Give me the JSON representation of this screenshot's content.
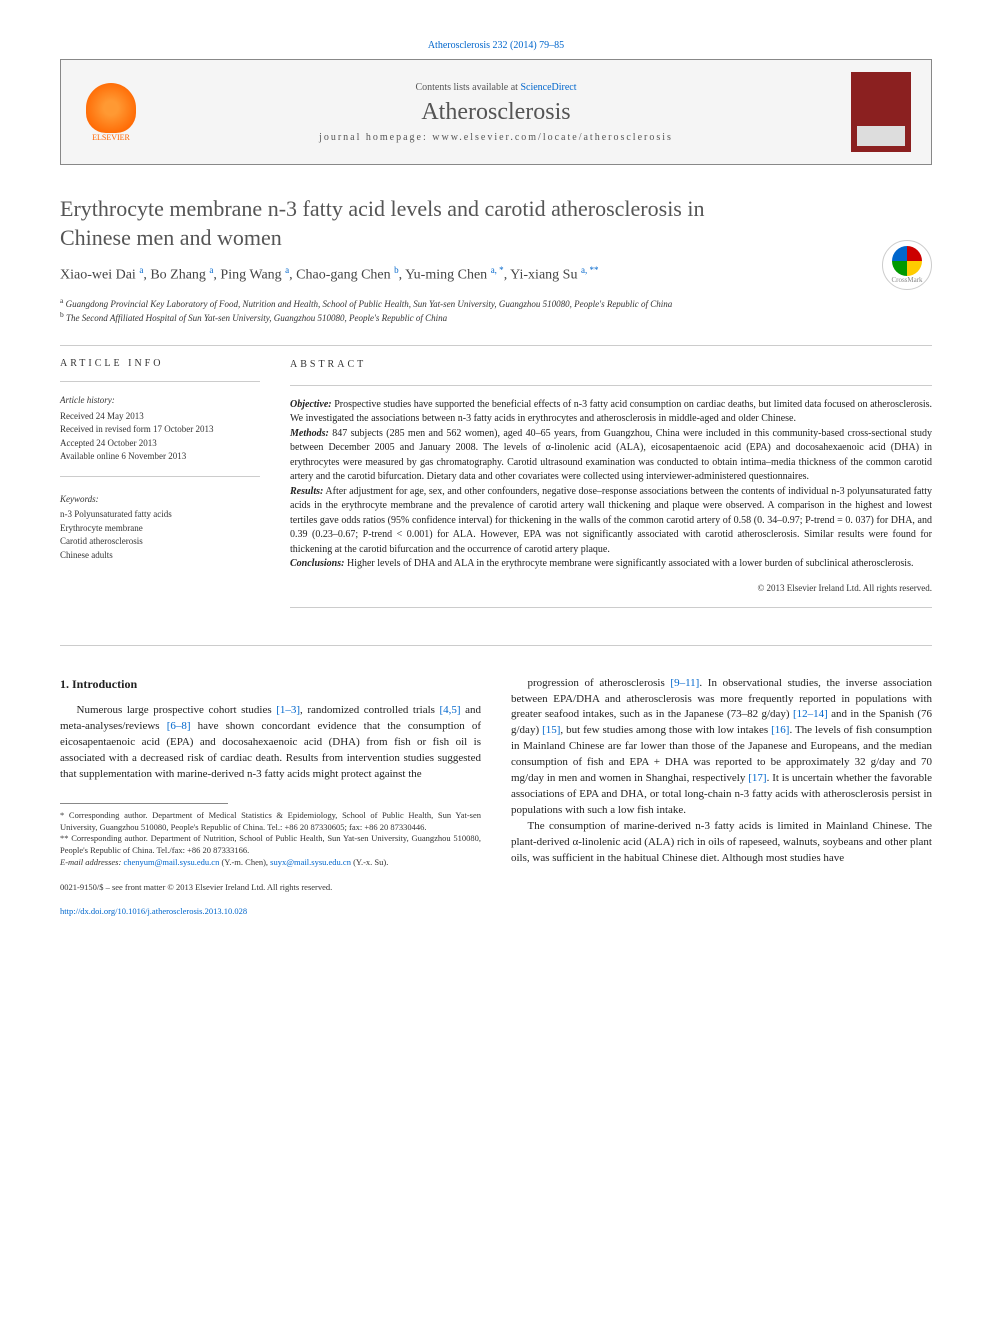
{
  "citation": "Atherosclerosis 232 (2014) 79–85",
  "header": {
    "contents_prefix": "Contents lists available at ",
    "contents_link": "ScienceDirect",
    "journal_name": "Atherosclerosis",
    "homepage_prefix": "journal homepage: ",
    "homepage_url": "www.elsevier.com/locate/atherosclerosis",
    "publisher_name": "ELSEVIER"
  },
  "crossmark_label": "CrossMark",
  "title": "Erythrocyte membrane n-3 fatty acid levels and carotid atherosclerosis in Chinese men and women",
  "authors_html": "Xiao-wei Dai <sup>a</sup>, Bo Zhang <sup>a</sup>, Ping Wang <sup>a</sup>, Chao-gang Chen <sup>b</sup>, Yu-ming Chen <sup>a, *</sup>, Yi-xiang Su <sup>a, **</sup>",
  "affiliations": {
    "a": "Guangdong Provincial Key Laboratory of Food, Nutrition and Health, School of Public Health, Sun Yat-sen University, Guangzhou 510080, People's Republic of China",
    "b": "The Second Affiliated Hospital of Sun Yat-sen University, Guangzhou 510080, People's Republic of China"
  },
  "article_info_header": "ARTICLE INFO",
  "abstract_header": "ABSTRACT",
  "history": {
    "label": "Article history:",
    "received": "Received 24 May 2013",
    "revised": "Received in revised form 17 October 2013",
    "accepted": "Accepted 24 October 2013",
    "online": "Available online 6 November 2013"
  },
  "keywords": {
    "label": "Keywords:",
    "items": [
      "n-3 Polyunsaturated fatty acids",
      "Erythrocyte membrane",
      "Carotid atherosclerosis",
      "Chinese adults"
    ]
  },
  "abstract": {
    "objective_label": "Objective:",
    "objective": "Prospective studies have supported the beneficial effects of n-3 fatty acid consumption on cardiac deaths, but limited data focused on atherosclerosis. We investigated the associations between n-3 fatty acids in erythrocytes and atherosclerosis in middle-aged and older Chinese.",
    "methods_label": "Methods:",
    "methods": "847 subjects (285 men and 562 women), aged 40–65 years, from Guangzhou, China were included in this community-based cross-sectional study between December 2005 and January 2008. The levels of α-linolenic acid (ALA), eicosapentaenoic acid (EPA) and docosahexaenoic acid (DHA) in erythrocytes were measured by gas chromatography. Carotid ultrasound examination was conducted to obtain intima–media thickness of the common carotid artery and the carotid bifurcation. Dietary data and other covariates were collected using interviewer-administered questionnaires.",
    "results_label": "Results:",
    "results": "After adjustment for age, sex, and other confounders, negative dose–response associations between the contents of individual n-3 polyunsaturated fatty acids in the erythrocyte membrane and the prevalence of carotid artery wall thickening and plaque were observed. A comparison in the highest and lowest tertiles gave odds ratios (95% confidence interval) for thickening in the walls of the common carotid artery of 0.58 (0. 34–0.97; P-trend = 0. 037) for DHA, and 0.39 (0.23–0.67; P-trend < 0.001) for ALA. However, EPA was not significantly associated with carotid atherosclerosis. Similar results were found for thickening at the carotid bifurcation and the occurrence of carotid artery plaque.",
    "conclusions_label": "Conclusions:",
    "conclusions": "Higher levels of DHA and ALA in the erythrocyte membrane were significantly associated with a lower burden of subclinical atherosclerosis.",
    "copyright": "© 2013 Elsevier Ireland Ltd. All rights reserved."
  },
  "intro": {
    "heading": "1. Introduction",
    "p1_pre": "Numerous large prospective cohort studies ",
    "p1_ref1": "[1–3]",
    "p1_mid1": ", randomized controlled trials ",
    "p1_ref2": "[4,5]",
    "p1_mid2": " and meta-analyses/reviews ",
    "p1_ref3": "[6–8]",
    "p1_post": " have shown concordant evidence that the consumption of eicosapentaenoic acid (EPA) and docosahexaenoic acid (DHA) from fish or fish oil is associated with a decreased risk of cardiac death. Results from intervention studies suggested that supplementation with marine-derived n-3 fatty acids might protect against the",
    "p2_pre": "progression of atherosclerosis ",
    "p2_ref1": "[9–11]",
    "p2_mid1": ". In observational studies, the inverse association between EPA/DHA and atherosclerosis was more frequently reported in populations with greater seafood intakes, such as in the Japanese (73–82 g/day) ",
    "p2_ref2": "[12–14]",
    "p2_mid2": " and in the Spanish (76 g/day) ",
    "p2_ref3": "[15]",
    "p2_mid3": ", but few studies among those with low intakes ",
    "p2_ref4": "[16]",
    "p2_mid4": ". The levels of fish consumption in Mainland Chinese are far lower than those of the Japanese and Europeans, and the median consumption of fish and EPA + DHA was reported to be approximately 32 g/day and 70 mg/day in men and women in Shanghai, respectively ",
    "p2_ref5": "[17]",
    "p2_post": ". It is uncertain whether the favorable associations of EPA and DHA, or total long-chain n-3 fatty acids with atherosclerosis persist in populations with such a low fish intake.",
    "p3": "The consumption of marine-derived n-3 fatty acids is limited in Mainland Chinese. The plant-derived α-linolenic acid (ALA) rich in oils of rapeseed, walnuts, soybeans and other plant oils, was sufficient in the habitual Chinese diet. Although most studies have"
  },
  "footnotes": {
    "corr1": "* Corresponding author. Department of Medical Statistics & Epidemiology, School of Public Health, Sun Yat-sen University, Guangzhou 510080, People's Republic of China. Tel.: +86 20 87330605; fax: +86 20 87330446.",
    "corr2": "** Corresponding author. Department of Nutrition, School of Public Health, Sun Yat-sen University, Guangzhou 510080, People's Republic of China. Tel./fax: +86 20 87333166.",
    "email_label": "E-mail addresses: ",
    "email1": "chenyum@mail.sysu.edu.cn",
    "email1_name": " (Y.-m. Chen), ",
    "email2": "suyx@mail.sysu.edu.cn",
    "email2_name": " (Y.-x. Su)."
  },
  "footer": {
    "issn": "0021-9150/$ – see front matter © 2013 Elsevier Ireland Ltd. All rights reserved.",
    "doi": "http://dx.doi.org/10.1016/j.atherosclerosis.2013.10.028"
  },
  "colors": {
    "link": "#0066cc",
    "text": "#222222",
    "header_gray": "#555555",
    "border": "#cccccc",
    "elsevier_orange": "#ff6600",
    "cover_red": "#8b2020"
  },
  "typography": {
    "title_fontsize": 22,
    "journal_fontsize": 24,
    "authors_fontsize": 14,
    "body_fontsize": 11,
    "abstract_fontsize": 10,
    "footnote_fontsize": 8.5
  }
}
